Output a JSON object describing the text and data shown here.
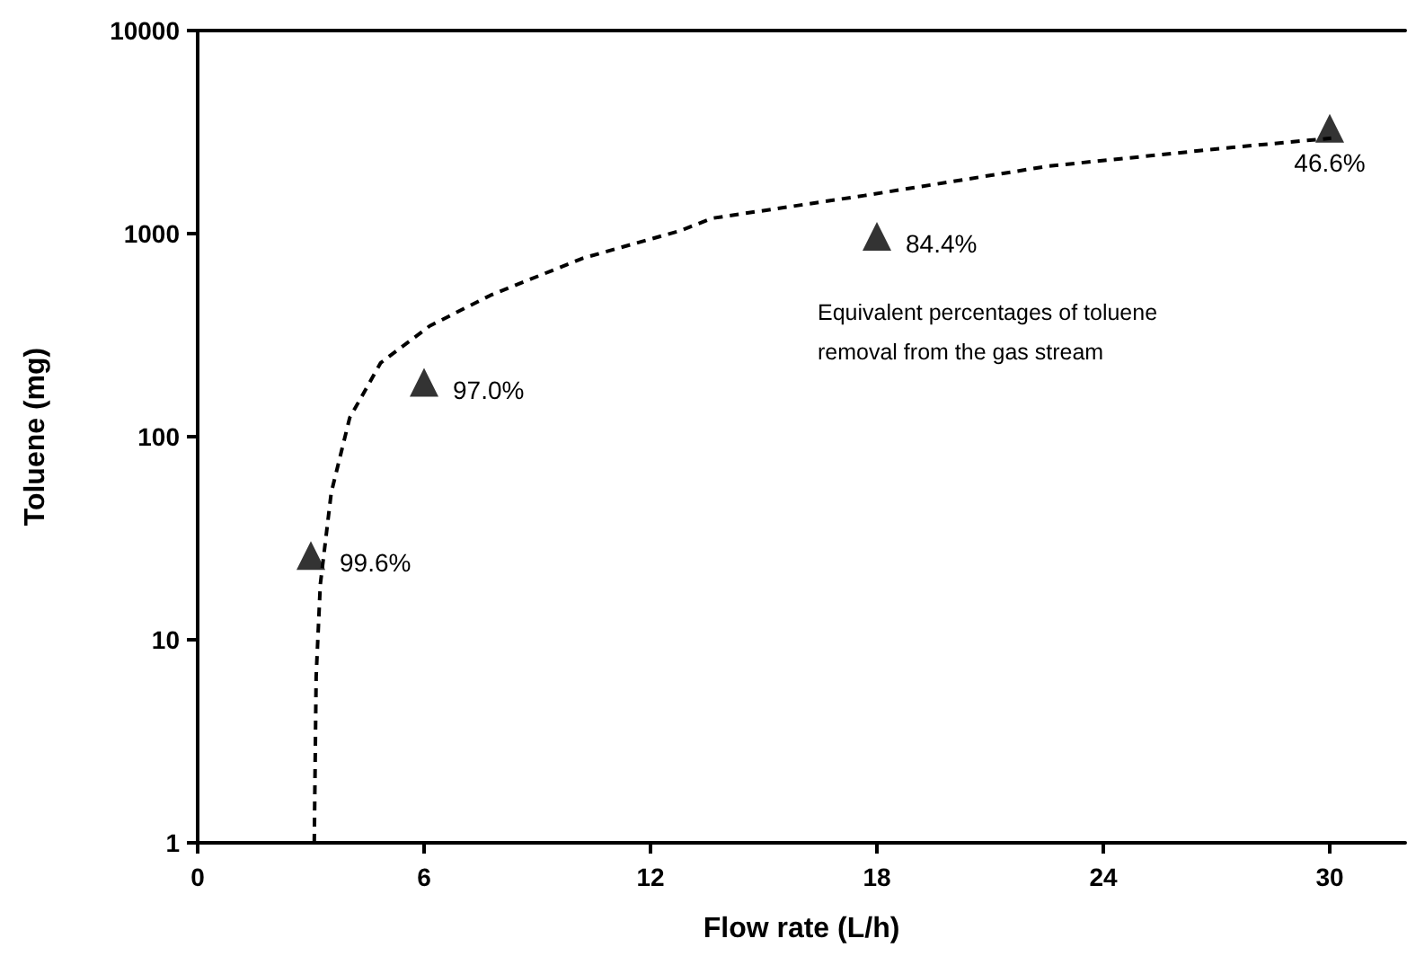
{
  "chart_data": {
    "type": "scatter",
    "xlabel": "Flow rate (L/h)",
    "ylabel": "Toluene (mg)",
    "xlim": [
      0,
      32
    ],
    "xticks": [
      0,
      6,
      12,
      18,
      24,
      30
    ],
    "ylim": [
      1,
      10000
    ],
    "yticks": [
      1,
      10,
      100,
      1000,
      10000
    ],
    "log": "y",
    "grid": false,
    "annotations": [
      "Equivalent percentages of toluene removal from the gas stream",
      {
        "text": "99.6%",
        "x": 3,
        "y": 26
      },
      {
        "text": "97.0%",
        "x": 6,
        "y": 185
      },
      {
        "text": "84.4%",
        "x": 18,
        "y": 970
      },
      {
        "text": "46.6%",
        "x": 30,
        "y": 3300
      }
    ],
    "series": [
      {
        "color": "#000000",
        "marker": "triangle",
        "x": [
          3,
          6,
          18,
          30
        ],
        "values": [
          26,
          185,
          970,
          3300
        ]
      },
      {
        "type": "line",
        "color": "#000000",
        "marker": "none",
        "line_style": "dashed",
        "x": [
          3.09,
          3.14,
          3.25,
          3.54,
          4.03,
          4.85,
          6.15,
          7.77,
          10.21,
          12.8,
          13.63,
          17.67,
          22.55,
          27.43,
          30.04
        ],
        "values": [
          1,
          6.6,
          18.7,
          53,
          124,
          231,
          351,
          498,
          757,
          1035,
          1190,
          1540,
          2150,
          2660,
          2950
        ]
      }
    ]
  }
}
